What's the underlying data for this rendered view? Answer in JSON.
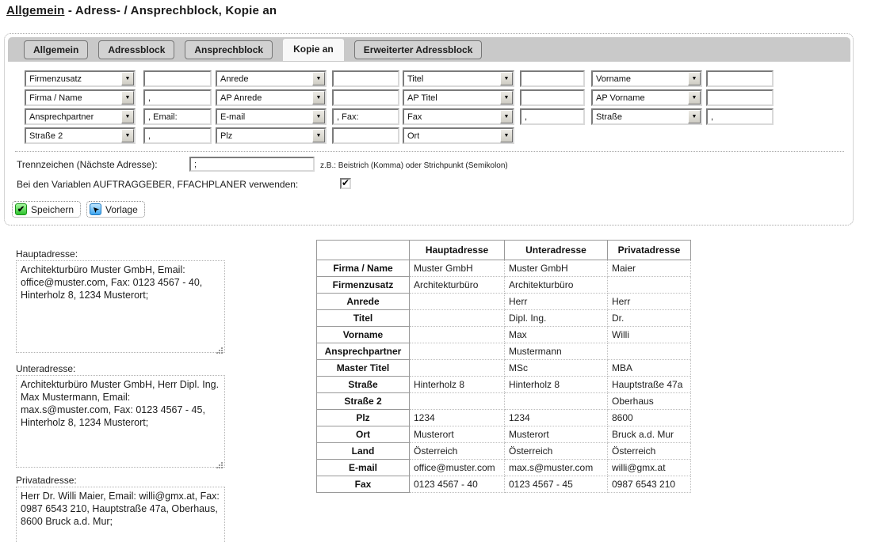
{
  "page_title": {
    "link": "Allgemein",
    "rest": " - Adress- / Ansprechblock, Kopie an"
  },
  "tabs": [
    {
      "label": "Allgemein",
      "active": false
    },
    {
      "label": "Adressblock",
      "active": false
    },
    {
      "label": "Ansprechblock",
      "active": false
    },
    {
      "label": "Kopie an",
      "active": true
    },
    {
      "label": "Erweiterter Adressblock",
      "active": false
    }
  ],
  "dropdown_grid": {
    "rows": [
      {
        "cells": [
          {
            "t": "select",
            "v": "Firmenzusatz"
          },
          {
            "t": "input",
            "v": ""
          },
          {
            "t": "select",
            "v": "Anrede"
          },
          {
            "t": "input",
            "v": ""
          },
          {
            "t": "select",
            "v": "Titel"
          },
          {
            "t": "input",
            "v": ""
          },
          {
            "t": "select",
            "v": "Vorname"
          },
          {
            "t": "input",
            "v": ""
          }
        ]
      },
      {
        "cells": [
          {
            "t": "select",
            "v": "Firma / Name"
          },
          {
            "t": "input",
            "v": ","
          },
          {
            "t": "select",
            "v": "AP Anrede"
          },
          {
            "t": "input",
            "v": ""
          },
          {
            "t": "select",
            "v": "AP Titel"
          },
          {
            "t": "input",
            "v": ""
          },
          {
            "t": "select",
            "v": "AP Vorname"
          },
          {
            "t": "input",
            "v": ""
          }
        ]
      },
      {
        "cells": [
          {
            "t": "select",
            "v": "Ansprechpartner"
          },
          {
            "t": "input",
            "v": ", Email:"
          },
          {
            "t": "select",
            "v": "E-mail"
          },
          {
            "t": "input",
            "v": ", Fax:"
          },
          {
            "t": "select",
            "v": "Fax"
          },
          {
            "t": "input",
            "v": ","
          },
          {
            "t": "select",
            "v": "Straße"
          },
          {
            "t": "input",
            "v": ","
          }
        ]
      },
      {
        "cells": [
          {
            "t": "select",
            "v": "Straße 2"
          },
          {
            "t": "input",
            "v": ","
          },
          {
            "t": "select",
            "v": "Plz"
          },
          {
            "t": "input",
            "v": ""
          },
          {
            "t": "select",
            "v": "Ort"
          }
        ]
      }
    ]
  },
  "separator_section": {
    "trennzeichen_label": "Trennzeichen (Nächste Adresse):",
    "trennzeichen_value": ";",
    "trennzeichen_hint": "z.B.: Beistrich (Komma) oder Strichpunkt (Semikolon)",
    "variables_label": "Bei den Variablen AUFTRAGGEBER, FFACHPLANER verwenden:",
    "variables_checked": true
  },
  "actions": {
    "save_label": "Speichern",
    "template_label": "Vorlage"
  },
  "address_previews": [
    {
      "label": "Hauptadresse:",
      "text": "Architekturbüro Muster GmbH, Email: office@muster.com, Fax: 0123 4567 - 40, Hinterholz 8, 1234 Musterort;"
    },
    {
      "label": "Unteradresse:",
      "text": "Architekturbüro Muster GmbH, Herr Dipl. Ing. Max Mustermann, Email: max.s@muster.com, Fax: 0123 4567 - 45, Hinterholz 8, 1234 Musterort;"
    },
    {
      "label": "Privatadresse:",
      "text": "Herr Dr. Willi Maier, Email: willi@gmx.at, Fax: 0987 6543 210, Hauptstraße 47a, Oberhaus, 8600 Bruck a.d. Mur;"
    }
  ],
  "address_table": {
    "headers": [
      "",
      "Hauptadresse",
      "Unteradresse",
      "Privatadresse"
    ],
    "rows": [
      {
        "label": "Firma / Name",
        "values": [
          "Muster GmbH",
          "Muster GmbH",
          "Maier"
        ]
      },
      {
        "label": "Firmenzusatz",
        "values": [
          "Architekturbüro",
          "Architekturbüro",
          ""
        ]
      },
      {
        "label": "Anrede",
        "values": [
          "",
          "Herr",
          "Herr"
        ]
      },
      {
        "label": "Titel",
        "values": [
          "",
          "Dipl. Ing.",
          "Dr."
        ]
      },
      {
        "label": "Vorname",
        "values": [
          "",
          "Max",
          "Willi"
        ]
      },
      {
        "label": "Ansprechpartner",
        "values": [
          "",
          "Mustermann",
          ""
        ]
      },
      {
        "label": "Master Titel",
        "values": [
          "",
          "MSc",
          "MBA"
        ]
      },
      {
        "label": "Straße",
        "values": [
          "Hinterholz 8",
          "Hinterholz 8",
          "Hauptstraße 47a"
        ]
      },
      {
        "label": "Straße 2",
        "values": [
          "",
          "",
          "Oberhaus"
        ]
      },
      {
        "label": "Plz",
        "values": [
          "1234",
          "1234",
          "8600"
        ]
      },
      {
        "label": "Ort",
        "values": [
          "Musterort",
          "Musterort",
          "Bruck a.d. Mur"
        ]
      },
      {
        "label": "Land",
        "values": [
          "Österreich",
          "Österreich",
          "Österreich"
        ]
      },
      {
        "label": "E-mail",
        "values": [
          "office@muster.com",
          "max.s@muster.com",
          "willi@gmx.at"
        ]
      },
      {
        "label": "Fax",
        "values": [
          "0123 4567 - 40",
          "0123 4567 - 45",
          "0987 6543 210"
        ]
      }
    ]
  },
  "colors": {
    "tab_strip": "#c9c9c9",
    "accent_green": "#2dc22d",
    "accent_blue": "#3da6f0"
  }
}
